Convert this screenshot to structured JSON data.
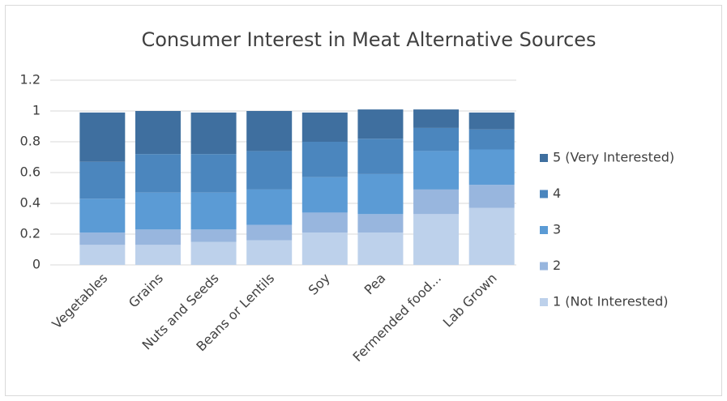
{
  "chart_data": {
    "type": "stacked_bar",
    "title": "Consumer Interest in Meat Alternative Sources",
    "categories": [
      "Vegetables",
      "Grains",
      "Nuts and Seeds",
      "Beans or Lentils",
      "Soy",
      "Pea",
      "Fermended food...",
      "Lab Grown"
    ],
    "series": [
      {
        "name": "1 (Not Interested)",
        "color": "#bdd1eb",
        "values": [
          0.13,
          0.13,
          0.15,
          0.16,
          0.21,
          0.21,
          0.33,
          0.37
        ]
      },
      {
        "name": "2",
        "color": "#98b6de",
        "values": [
          0.08,
          0.1,
          0.08,
          0.1,
          0.13,
          0.12,
          0.16,
          0.15
        ]
      },
      {
        "name": "3",
        "color": "#5b9bd5",
        "values": [
          0.22,
          0.24,
          0.24,
          0.23,
          0.23,
          0.26,
          0.25,
          0.23
        ]
      },
      {
        "name": "4",
        "color": "#4b86be",
        "values": [
          0.24,
          0.25,
          0.25,
          0.25,
          0.23,
          0.23,
          0.15,
          0.13
        ]
      },
      {
        "name": "5 (Very Interested)",
        "color": "#3f6f9f",
        "values": [
          0.32,
          0.28,
          0.27,
          0.26,
          0.19,
          0.19,
          0.12,
          0.11
        ]
      }
    ],
    "ylim": [
      0,
      1.2
    ],
    "yticks": [
      0,
      0.2,
      0.4,
      0.6,
      0.8,
      1,
      1.2
    ],
    "grid": true,
    "legend": "right"
  }
}
